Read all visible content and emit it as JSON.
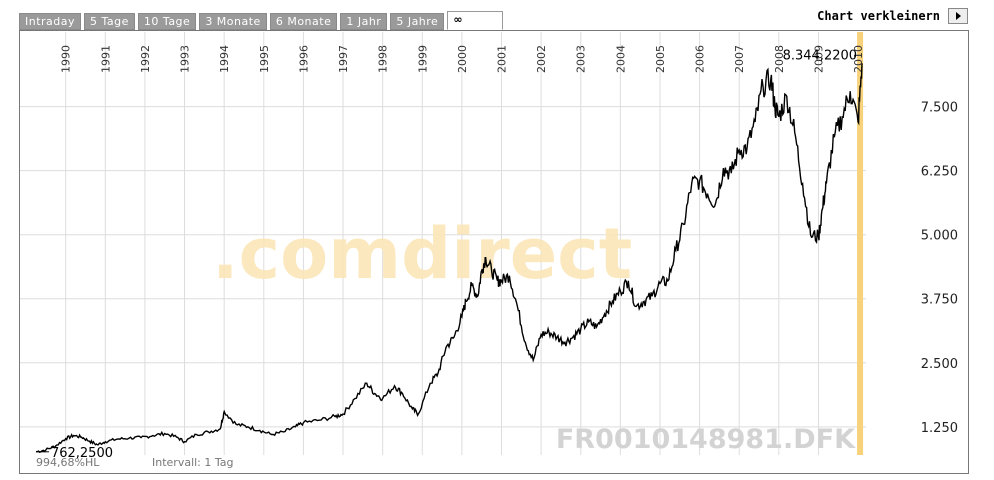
{
  "tabs": [
    {
      "label": "Intraday",
      "active": false
    },
    {
      "label": "5 Tage",
      "active": false
    },
    {
      "label": "10 Tage",
      "active": false
    },
    {
      "label": "3 Monate",
      "active": false
    },
    {
      "label": "6 Monate",
      "active": false
    },
    {
      "label": "1 Jahr",
      "active": false
    },
    {
      "label": "5 Jahre",
      "active": false
    },
    {
      "label": "∞",
      "active": true
    }
  ],
  "chart_toggle": {
    "label": "Chart verkleinern",
    "icon": "play-arrow-icon"
  },
  "footer": {
    "scale": "994,68%HL",
    "interval": "Intervall: 1 Tag"
  },
  "watermark": {
    "brand": ".comdirect",
    "symbol": "FR0010148981.DFK"
  },
  "colors": {
    "line": "#000000",
    "grid": "#dddddd",
    "highlight": "#f7d27a",
    "watermark_text": "#d3d3d3",
    "watermark_dot": "#fbe6b8"
  },
  "chart_data": {
    "type": "line",
    "xlabel": "",
    "ylabel": "",
    "x_ticks": [
      "1990",
      "1991",
      "1992",
      "1993",
      "1994",
      "1995",
      "1996",
      "1997",
      "1998",
      "1999",
      "2000",
      "2001",
      "2002",
      "2003",
      "2004",
      "2005",
      "2006",
      "2007",
      "2008",
      "2009",
      "2010"
    ],
    "y_ticks": [
      "1.250",
      "2.500",
      "3.750",
      "5.000",
      "6.250",
      "7.500"
    ],
    "y_tick_values": [
      1250,
      2500,
      3750,
      5000,
      6250,
      7500
    ],
    "ylim": [
      700,
      8800
    ],
    "x_range": [
      1989.2,
      2010.2
    ],
    "grid": true,
    "annotations": [
      {
        "text": "762,2500",
        "x": 1989.25,
        "y": 762.25
      },
      {
        "text": "8.344,2200",
        "x": 2010.1,
        "y": 8344.22
      }
    ],
    "series": [
      {
        "x": [
          1989.25,
          1989.5,
          1989.75,
          1990.0,
          1990.2,
          1990.4,
          1990.6,
          1990.8,
          1991.0,
          1991.3,
          1991.6,
          1991.9,
          1992.2,
          1992.5,
          1992.8,
          1993.0,
          1993.3,
          1993.6,
          1993.9,
          1994.0,
          1994.3,
          1994.6,
          1994.9,
          1995.2,
          1995.5,
          1995.8,
          1996.0,
          1996.4,
          1996.8,
          1997.0,
          1997.3,
          1997.6,
          1997.8,
          1998.0,
          1998.3,
          1998.5,
          1998.75,
          1998.9,
          1999.2,
          1999.4,
          1999.6,
          1999.8,
          2000.0,
          2000.1,
          2000.25,
          2000.4,
          2000.5,
          2000.6,
          2000.75,
          2000.9,
          2001.0,
          2001.2,
          2001.4,
          2001.6,
          2001.8,
          2002.0,
          2002.2,
          2002.4,
          2002.6,
          2002.8,
          2003.0,
          2003.2,
          2003.4,
          2003.6,
          2003.8,
          2004.0,
          2004.2,
          2004.4,
          2004.6,
          2004.8,
          2005.0,
          2005.2,
          2005.4,
          2005.6,
          2005.8,
          2006.0,
          2006.2,
          2006.4,
          2006.6,
          2006.8,
          2007.0,
          2007.2,
          2007.4,
          2007.6,
          2007.8,
          2007.9,
          2008.0,
          2008.2,
          2008.4,
          2008.6,
          2008.8,
          2009.0,
          2009.1,
          2009.2,
          2009.4,
          2009.6,
          2009.8,
          2010.0,
          2010.1
        ],
        "y": [
          762.25,
          800,
          880,
          1020,
          1080,
          1050,
          970,
          900,
          960,
          1010,
          1030,
          1040,
          1080,
          1120,
          1050,
          960,
          1100,
          1150,
          1210,
          1550,
          1300,
          1250,
          1180,
          1100,
          1150,
          1250,
          1330,
          1380,
          1450,
          1500,
          1800,
          2100,
          1900,
          1800,
          2050,
          1900,
          1600,
          1500,
          2100,
          2300,
          2800,
          3000,
          3400,
          3700,
          4000,
          3800,
          4300,
          4550,
          4300,
          4100,
          4100,
          4200,
          3600,
          2900,
          2550,
          3050,
          3100,
          3000,
          2900,
          3000,
          3150,
          3300,
          3200,
          3450,
          3700,
          3900,
          4100,
          3600,
          3700,
          3800,
          4050,
          4100,
          4700,
          5200,
          6000,
          6050,
          5800,
          5600,
          6300,
          6200,
          6650,
          6700,
          7200,
          7900,
          8050,
          7500,
          7300,
          7700,
          7000,
          6000,
          5000,
          4950,
          5500,
          6000,
          6900,
          7300,
          7800,
          7200,
          8344.22
        ]
      }
    ]
  }
}
